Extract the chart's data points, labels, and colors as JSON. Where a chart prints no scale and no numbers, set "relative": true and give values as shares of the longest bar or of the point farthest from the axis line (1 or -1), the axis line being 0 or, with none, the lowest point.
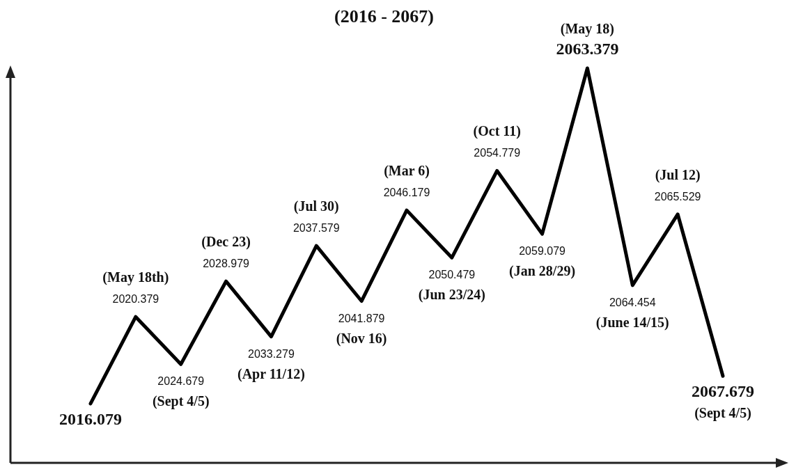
{
  "chart_data": {
    "type": "line",
    "title": "(2016 - 2067)",
    "relative": true,
    "color": "#000000",
    "categories": [
      null,
      null,
      null,
      null,
      null,
      null,
      null,
      null,
      null,
      null,
      null,
      null,
      null,
      null,
      null
    ],
    "values": [
      0.15,
      0.37,
      0.25,
      0.46,
      0.32,
      0.55,
      0.41,
      0.64,
      0.52,
      0.74,
      0.58,
      1,
      0.45,
      0.63,
      0.22
    ],
    "annotations": [
      {
        "text": "2016.079",
        "y": 0.15
      },
      {
        "text": "(May 18th)",
        "y": 0.37
      },
      {
        "text": "2020.379",
        "y": 0.37
      },
      {
        "text": "2024.679",
        "y": 0.25
      },
      {
        "text": "(Sept 4/5)",
        "y": 0.25
      },
      {
        "text": "(Dec 23)",
        "y": 0.46
      },
      {
        "text": "2028.979",
        "y": 0.46
      },
      {
        "text": "2033.279",
        "y": 0.32
      },
      {
        "text": "(Apr 11/12)",
        "y": 0.32
      },
      {
        "text": "(Jul 30)",
        "y": 0.55
      },
      {
        "text": "2037.579",
        "y": 0.55
      },
      {
        "text": "2041.879",
        "y": 0.41
      },
      {
        "text": "(Nov 16)",
        "y": 0.41
      },
      {
        "text": "(Mar 6)",
        "y": 0.64
      },
      {
        "text": "2046.179",
        "y": 0.64
      },
      {
        "text": "2050.479",
        "y": 0.52
      },
      {
        "text": "(Jun 23/24)",
        "y": 0.52
      },
      {
        "text": "(Oct 11)",
        "y": 0.74
      },
      {
        "text": "2054.779",
        "y": 0.74
      },
      {
        "text": "2059.079",
        "y": 0.58
      },
      {
        "text": "(Jan 28/29)",
        "y": 0.58
      },
      {
        "text": "(May 18)",
        "y": 1
      },
      {
        "text": "2063.379",
        "y": 1
      },
      {
        "text": "2064.454",
        "y": 0.45
      },
      {
        "text": "(June 14/15)",
        "y": 0.45
      },
      {
        "text": "(Jul 12)",
        "y": 0.63
      },
      {
        "text": "2065.529",
        "y": 0.63
      },
      {
        "text": "2067.679",
        "y": 0.22
      },
      {
        "text": "(Sept 4/5)",
        "y": 0.22
      }
    ]
  }
}
